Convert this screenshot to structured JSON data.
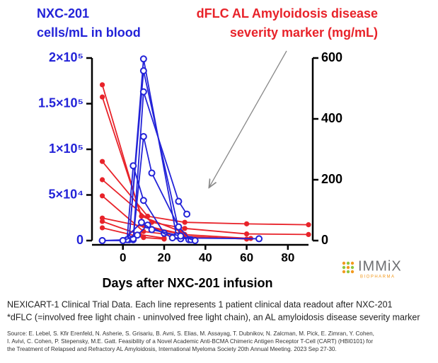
{
  "chart_data": {
    "type": "line",
    "ylabel_lines": [
      "NXC-201",
      "cells/mL in blood"
    ],
    "y2label_lines": [
      "dFLC AL Amyloidosis disease",
      "severity marker (mg/mL)"
    ],
    "xlabel": "Days after NXC-201 infusion",
    "xlim": [
      -15,
      90
    ],
    "xticks": [
      0,
      20,
      40,
      60,
      80
    ],
    "ylim": [
      0,
      200000
    ],
    "yticks": [
      0,
      {
        "value": 50000,
        "label": "5×10⁴"
      },
      {
        "value": 100000,
        "label": "1×10⁵"
      },
      {
        "value": 150000,
        "label": "1.5×10⁵"
      },
      {
        "value": 200000,
        "label": "2×10⁵"
      }
    ],
    "y2lim": [
      0,
      600
    ],
    "y2ticks": [
      0,
      200,
      400,
      600
    ],
    "y_color": "#2323d8",
    "y2_color": "#e8232a",
    "series": [
      {
        "axis": "y2",
        "color": "#e8232a",
        "marker": "filled",
        "x": [
          -10,
          10,
          30
        ],
        "values": [
          512,
          50,
          20
        ]
      },
      {
        "axis": "y2",
        "color": "#e8232a",
        "marker": "filled",
        "x": [
          -10,
          9,
          28
        ],
        "values": [
          472,
          80,
          30
        ]
      },
      {
        "axis": "y2",
        "color": "#e8232a",
        "marker": "filled",
        "x": [
          -10,
          12,
          30,
          60,
          90
        ],
        "values": [
          260,
          80,
          60,
          55,
          52
        ]
      },
      {
        "axis": "y2",
        "color": "#e8232a",
        "marker": "filled",
        "x": [
          -10,
          14,
          30,
          60,
          90
        ],
        "values": [
          200,
          60,
          40,
          22,
          20
        ]
      },
      {
        "axis": "y2",
        "color": "#e8232a",
        "marker": "filled",
        "x": [
          -10,
          10,
          28,
          60
        ],
        "values": [
          147,
          30,
          15,
          5
        ]
      },
      {
        "axis": "y2",
        "color": "#e8232a",
        "marker": "filled",
        "x": [
          -10,
          14,
          29,
          62
        ],
        "values": [
          74,
          40,
          20,
          7
        ]
      },
      {
        "axis": "y2",
        "color": "#e8232a",
        "marker": "filled",
        "x": [
          -10,
          8,
          20
        ],
        "values": [
          63,
          20,
          8
        ]
      },
      {
        "axis": "y2",
        "color": "#e8232a",
        "marker": "filled",
        "x": [
          -10,
          10,
          20
        ],
        "values": [
          42,
          10,
          5
        ]
      },
      {
        "axis": "y",
        "color": "#2323d8",
        "marker": "open",
        "x": [
          -10,
          3,
          10,
          26,
          32
        ],
        "values": [
          0,
          1000,
          199000,
          5000,
          1000
        ]
      },
      {
        "axis": "y",
        "color": "#2323d8",
        "marker": "open",
        "x": [
          3,
          10,
          28
        ],
        "values": [
          2000,
          186000,
          2000
        ]
      },
      {
        "axis": "y",
        "color": "#2323d8",
        "marker": "open",
        "x": [
          5,
          10,
          27,
          31
        ],
        "values": [
          1000,
          163000,
          43000,
          29000
        ]
      },
      {
        "axis": "y",
        "color": "#2323d8",
        "marker": "open",
        "x": [
          5,
          10,
          14,
          27,
          33
        ],
        "values": [
          2000,
          114000,
          74000,
          15000,
          1000
        ]
      },
      {
        "axis": "y",
        "color": "#2323d8",
        "marker": "open",
        "x": [
          2,
          5,
          10,
          20
        ],
        "values": [
          1000,
          82000,
          44000,
          8000
        ]
      },
      {
        "axis": "y",
        "color": "#2323d8",
        "marker": "open",
        "x": [
          0,
          7,
          12,
          24,
          66
        ],
        "values": [
          0,
          6000,
          17000,
          3000,
          2000
        ]
      },
      {
        "axis": "y",
        "color": "#2323d8",
        "marker": "open",
        "x": [
          -10,
          0,
          9,
          14,
          28,
          35
        ],
        "values": [
          0,
          0,
          20000,
          12000,
          5000,
          0
        ]
      }
    ]
  },
  "logo": {
    "name": "IMMiX",
    "sub": "BIOPHARMA"
  },
  "notes": [
    "NEXICART-1 Clinical Trial Data. Each line represents 1 patient clinical data readout after NXC-201",
    "*dFLC (=involved free light chain - uninvolved free light chain), an AL amyloidosis disease severity marker"
  ],
  "source": [
    "Source: E. Lebel, S. Kfir Erenfeld, N. Asherie, S. Grisariu, B. Avni, S. Elias, M. Assayag, T. Dubnikov, N. Zalcman, M. Pick, E. Zimran, Y. Cohen,",
    "I. Avivi, C. Cohen, P. Stepensky, M.E. Gatt. Feasibility of a Novel Academic Anti-BCMA Chimeric Antigen Receptor T-Cell (CART) (HBI0101) for",
    "the Treatment of Relapsed and Refractory AL Amyloidosis, International Myeloma Society 20th Annual Meeting. 2023 Sep 27-30."
  ]
}
